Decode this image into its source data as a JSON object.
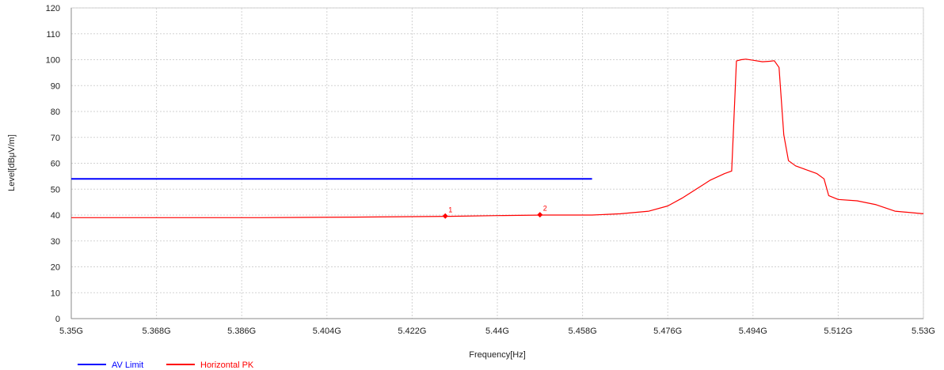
{
  "chart_data": {
    "type": "line",
    "xlabel": "Frequency[Hz]",
    "ylabel": "Level[dBμV/m]",
    "xlim": [
      5.35,
      5.53
    ],
    "ylim": [
      0,
      120
    ],
    "x_ticks": [
      5.35,
      5.368,
      5.386,
      5.404,
      5.422,
      5.44,
      5.458,
      5.476,
      5.494,
      5.512,
      5.53
    ],
    "x_tick_labels": [
      "5.35G",
      "5.368G",
      "5.386G",
      "5.404G",
      "5.422G",
      "5.44G",
      "5.458G",
      "5.476G",
      "5.494G",
      "5.512G",
      "5.53G"
    ],
    "y_ticks": [
      0,
      10,
      20,
      30,
      40,
      50,
      60,
      70,
      80,
      90,
      100,
      110,
      120
    ],
    "y_tick_labels": [
      "0",
      "10",
      "20",
      "30",
      "40",
      "50",
      "60",
      "70",
      "80",
      "90",
      "100",
      "110",
      "120"
    ],
    "grid": true,
    "legend_position": "bottom-left",
    "series": [
      {
        "name": "AV Limit",
        "color": "#0000ff",
        "x": [
          5.35,
          5.46
        ],
        "y": [
          54,
          54
        ]
      },
      {
        "name": "Horizontal PK",
        "color": "#ff0000",
        "x": [
          5.35,
          5.37,
          5.39,
          5.41,
          5.43,
          5.44,
          5.45,
          5.46,
          5.466,
          5.472,
          5.476,
          5.479,
          5.482,
          5.485,
          5.488,
          5.4895,
          5.4905,
          5.4915,
          5.4925,
          5.494,
          5.496,
          5.4975,
          5.4985,
          5.4995,
          5.5005,
          5.5015,
          5.503,
          5.5045,
          5.506,
          5.5075,
          5.509,
          5.51,
          5.512,
          5.516,
          5.52,
          5.524,
          5.53
        ],
        "y": [
          39,
          39,
          39,
          39.2,
          39.5,
          39.8,
          40,
          40,
          40.5,
          41.5,
          43.5,
          46.5,
          50,
          53.5,
          56,
          57,
          99.5,
          100,
          100.2,
          99.8,
          99.2,
          99.4,
          99.6,
          97,
          71,
          61,
          59,
          58,
          57,
          56,
          54,
          47.5,
          46,
          45.5,
          44,
          41.5,
          40.5
        ]
      }
    ],
    "markers": [
      {
        "label": "1",
        "x": 5.429,
        "y": 39.6
      },
      {
        "label": "2",
        "x": 5.449,
        "y": 40.1
      }
    ]
  }
}
